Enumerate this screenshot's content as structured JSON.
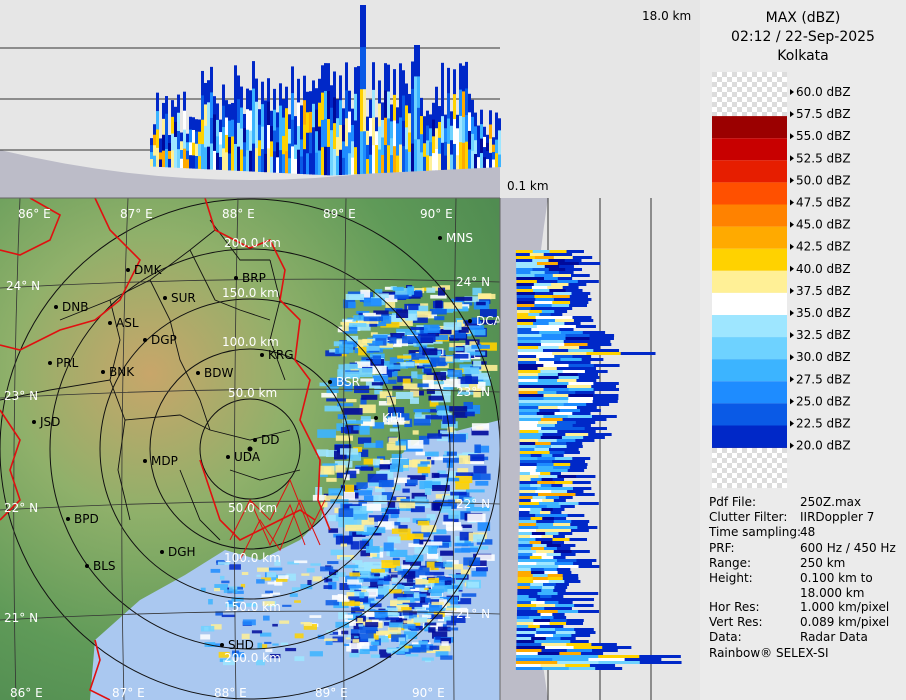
{
  "header": {
    "product": "MAX (dBZ)",
    "datetime": "02:12 / 22-Sep-2025",
    "station": "Kolkata"
  },
  "top_height_label": "18.0 km",
  "bottom_height_label": "0.1 km",
  "legend": {
    "levels": [
      {
        "label": "60.0 dBZ",
        "color": null
      },
      {
        "label": "57.5 dBZ",
        "color": "#9b0000"
      },
      {
        "label": "55.0 dBZ",
        "color": "#c80000"
      },
      {
        "label": "52.5 dBZ",
        "color": "#e61e00"
      },
      {
        "label": "50.0 dBZ",
        "color": "#ff5000"
      },
      {
        "label": "47.5 dBZ",
        "color": "#ff8200"
      },
      {
        "label": "45.0 dBZ",
        "color": "#ffaa00"
      },
      {
        "label": "42.5 dBZ",
        "color": "#ffd200"
      },
      {
        "label": "40.0 dBZ",
        "color": "#fff096"
      },
      {
        "label": "37.5 dBZ",
        "color": "#ffffff"
      },
      {
        "label": "35.0 dBZ",
        "color": "#9ee6ff"
      },
      {
        "label": "32.5 dBZ",
        "color": "#6ed2ff"
      },
      {
        "label": "30.0 dBZ",
        "color": "#3cb4ff"
      },
      {
        "label": "27.5 dBZ",
        "color": "#1e8cff"
      },
      {
        "label": "25.0 dBZ",
        "color": "#0a5ae6"
      },
      {
        "label": "22.5 dBZ",
        "color": "#0028c8"
      },
      {
        "label": "20.0 dBZ",
        "color": "#000a9b"
      }
    ]
  },
  "info": [
    {
      "key": "Pdf File:",
      "value": "250Z.max"
    },
    {
      "key": "Clutter Filter:",
      "value": "IIRDoppler 7"
    },
    {
      "key": "Time sampling:",
      "value": "48"
    },
    {
      "key": "PRF:",
      "value": "600 Hz / 450 Hz"
    },
    {
      "key": "Range:",
      "value": "250 km"
    },
    {
      "key": "Height:",
      "value": "0.100 km to"
    },
    {
      "key": "",
      "value": "18.000 km"
    },
    {
      "key": "Hor Res:",
      "value": "1.000 km/pixel"
    },
    {
      "key": "Vert Res:",
      "value": "0.089 km/pixel"
    },
    {
      "key": "Data:",
      "value": "Radar Data"
    }
  ],
  "credit": "Rainbow® SELEX-SI",
  "map": {
    "lon_labels": [
      "86° E",
      "87° E",
      "88° E",
      "89° E",
      "90° E"
    ],
    "lat_labels": [
      "24° N",
      "23° N",
      "22° N",
      "21° N"
    ],
    "range_rings": [
      "50.0 km",
      "100.0 km",
      "150.0 km",
      "200.0 km"
    ],
    "cities": [
      "MNS",
      "DMK",
      "BRP",
      "SUR",
      "DNB",
      "ASL",
      "DGP",
      "DCA",
      "KRG",
      "PRL",
      "BNK",
      "BDW",
      "BSR",
      "KHL",
      "JSD",
      "DD",
      "MDP",
      "UDA",
      "BPD",
      "DGH",
      "BLS",
      "SHD"
    ]
  }
}
